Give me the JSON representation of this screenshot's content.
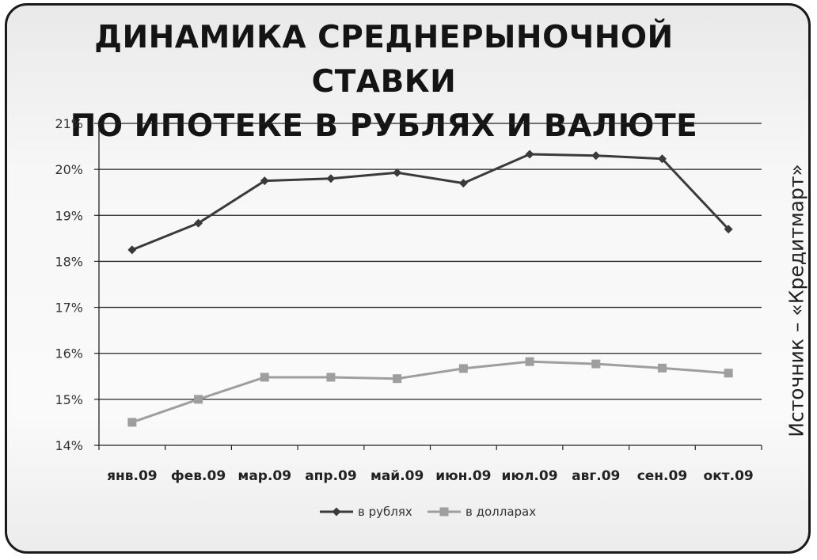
{
  "source_label": "Источник – «Кредитмарт»",
  "chart_data": {
    "type": "line",
    "title_lines": [
      "ДИНАМИКА СРЕДНЕРЫНОЧНОЙ СТАВКИ",
      "ПО ИПОТЕКЕ В РУБЛЯХ И ВАЛЮТЕ"
    ],
    "categories": [
      "янв.09",
      "фев.09",
      "мар.09",
      "апр.09",
      "май.09",
      "июн.09",
      "июл.09",
      "авг.09",
      "сен.09",
      "окт.09"
    ],
    "y_ticks": [
      "14%",
      "15%",
      "16%",
      "17%",
      "18%",
      "19%",
      "20%",
      "21%"
    ],
    "ylim": [
      14,
      21
    ],
    "grid": true,
    "legend_position": "bottom",
    "series": [
      {
        "name": "в рублях",
        "marker": "diamond",
        "color": "#3a3a3a",
        "values": [
          18.25,
          18.83,
          19.75,
          19.8,
          19.93,
          19.7,
          20.33,
          20.3,
          20.23,
          18.7
        ]
      },
      {
        "name": "в долларах",
        "marker": "square",
        "color": "#9e9e9e",
        "values": [
          14.5,
          15.0,
          15.48,
          15.48,
          15.45,
          15.67,
          15.82,
          15.77,
          15.68,
          15.57
        ]
      }
    ]
  }
}
